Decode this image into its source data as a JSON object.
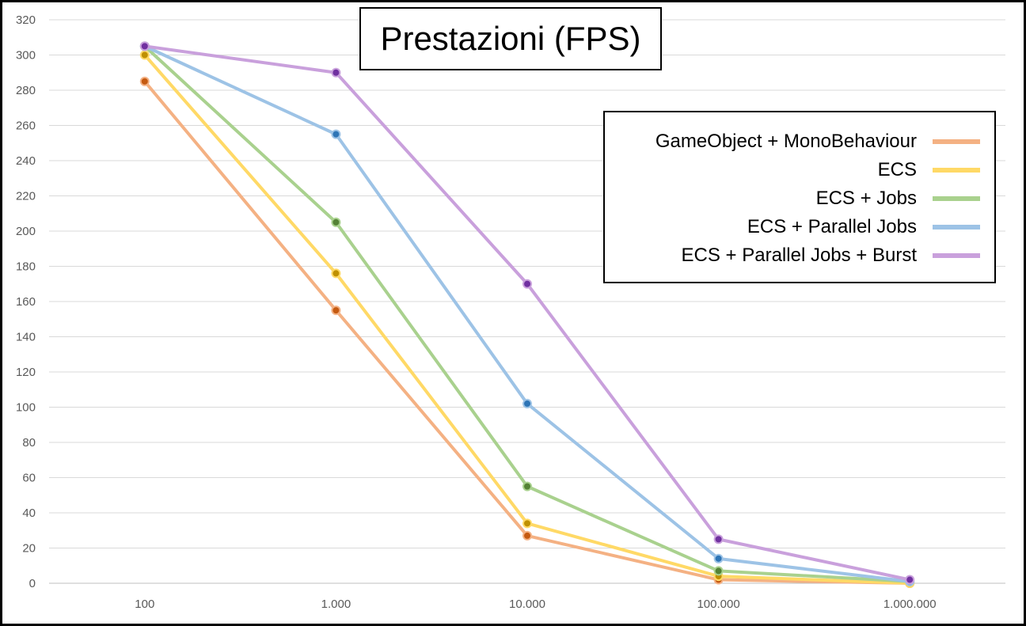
{
  "chart_data": {
    "type": "line",
    "title": "Prestazioni (FPS)",
    "categories": [
      "100",
      "1.000",
      "10.000",
      "100.000",
      "1.000.000"
    ],
    "ylim": [
      0,
      320
    ],
    "yticks": [
      "0",
      "20",
      "40",
      "60",
      "80",
      "100",
      "120",
      "140",
      "160",
      "180",
      "200",
      "220",
      "240",
      "260",
      "280",
      "300",
      "320"
    ],
    "grid": true,
    "legend_position": "top-right",
    "series": [
      {
        "name": "GameObject + MonoBehaviour",
        "color": "#F4B183",
        "marker_color": "#C55A11",
        "values": [
          285,
          155,
          27,
          2,
          0
        ]
      },
      {
        "name": "ECS",
        "color": "#FFD966",
        "marker_color": "#BF9000",
        "values": [
          300,
          176,
          34,
          4,
          0
        ]
      },
      {
        "name": "ECS + Jobs",
        "color": "#A9D18E",
        "marker_color": "#548235",
        "values": [
          305,
          205,
          55,
          7,
          1
        ]
      },
      {
        "name": "ECS + Parallel Jobs",
        "color": "#9DC3E6",
        "marker_color": "#2E75B6",
        "values": [
          305,
          255,
          102,
          14,
          1
        ]
      },
      {
        "name": "ECS + Parallel Jobs + Burst",
        "color": "#C9A0DC",
        "marker_color": "#7030A0",
        "values": [
          305,
          290,
          170,
          25,
          2
        ]
      }
    ]
  }
}
